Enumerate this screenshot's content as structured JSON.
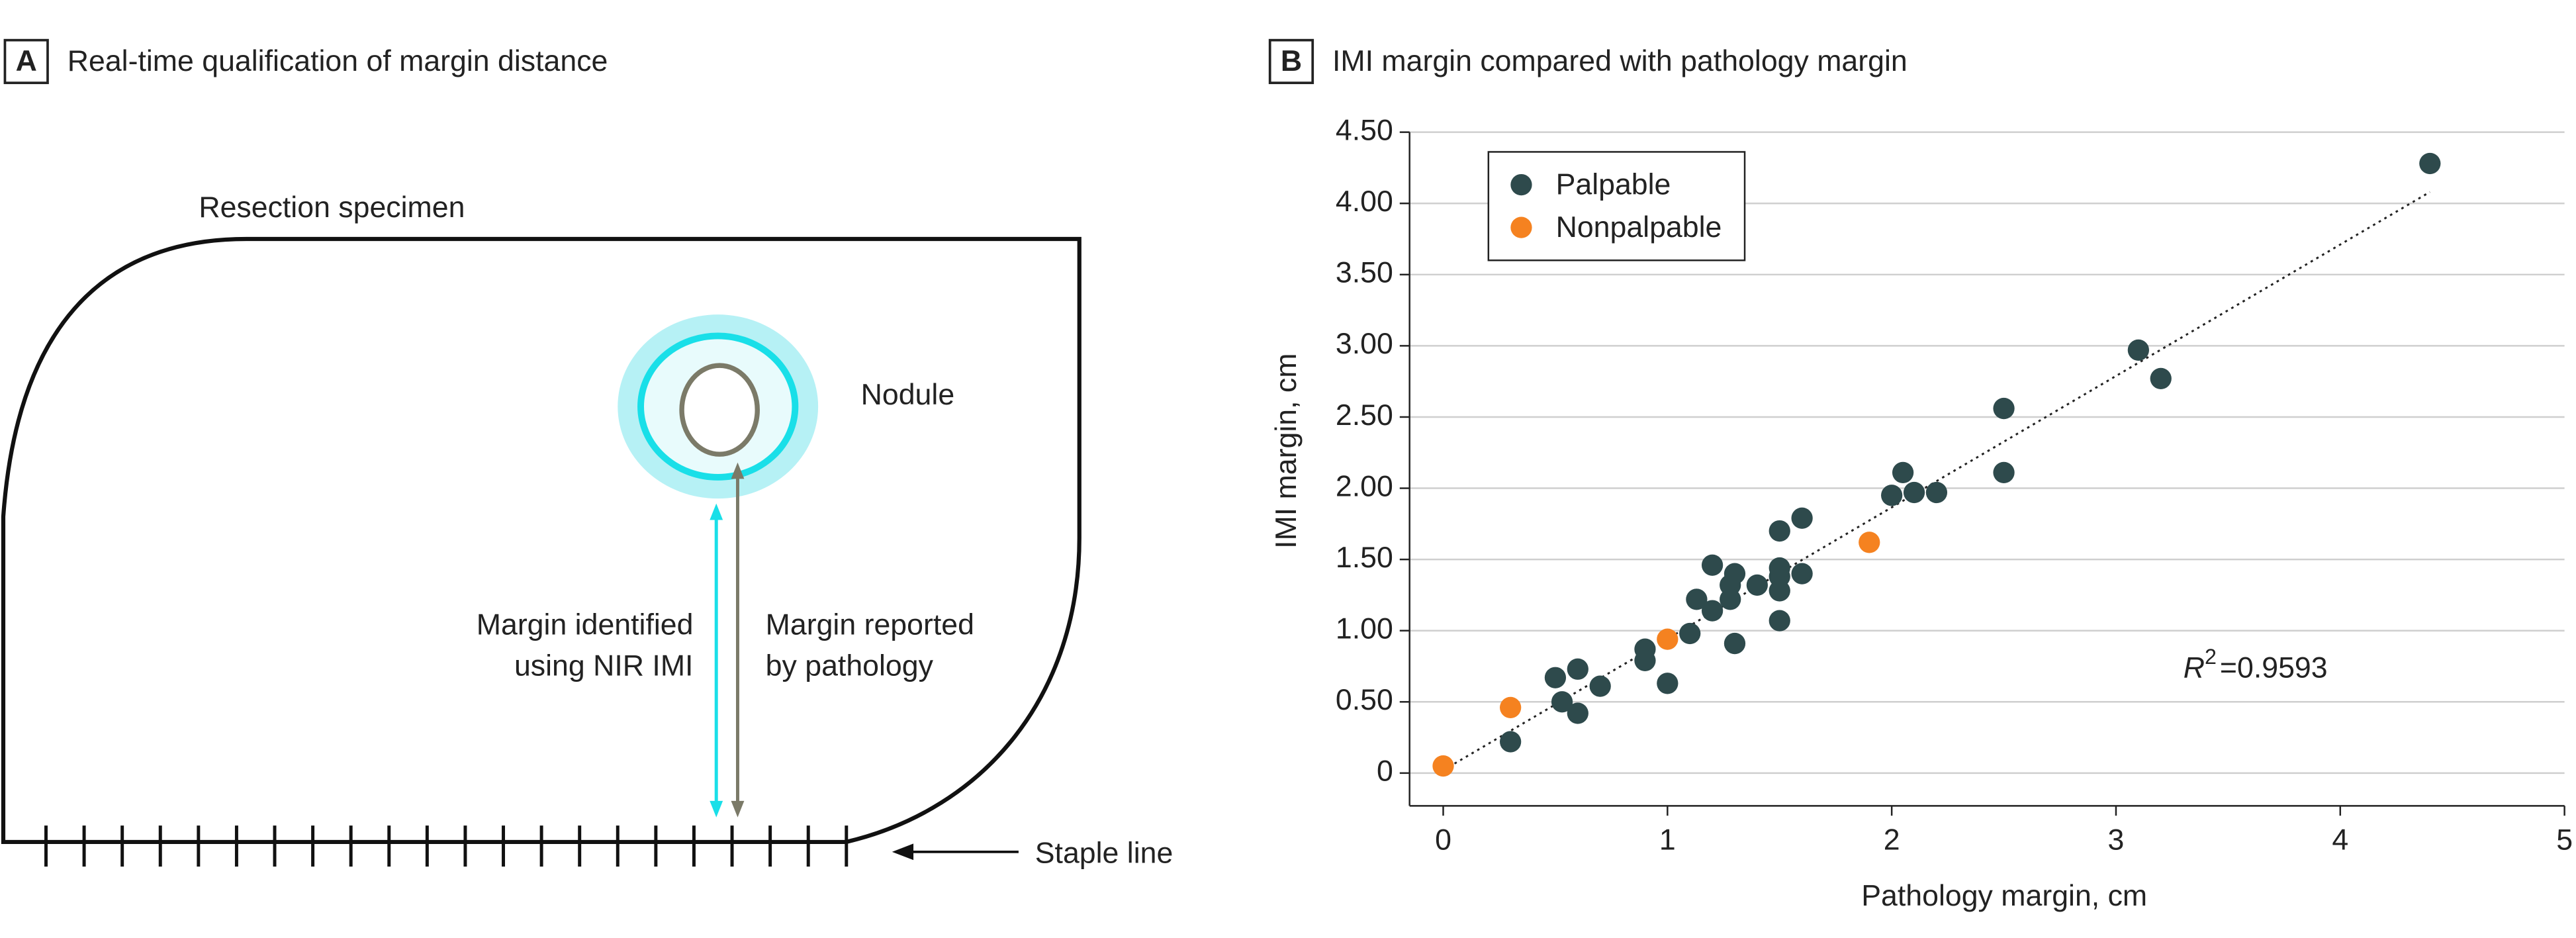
{
  "panel_a": {
    "letter": "A",
    "title": "Real-time qualification of margin distance",
    "specimen_label": "Resection specimen",
    "nodule_label": "Nodule",
    "imi_label": [
      "Margin identified",
      "using NIR IMI"
    ],
    "pathology_label": [
      "Margin reported",
      "by pathology"
    ],
    "staple_label": "Staple line"
  },
  "chart_data": {
    "type": "scatter",
    "letter": "B",
    "title": "IMI margin compared with pathology margin",
    "x_label": "Pathology margin, cm",
    "y_label": "IMI margin, cm",
    "xlim": [
      -0.15,
      5
    ],
    "xticks": [
      0,
      1,
      2,
      3,
      4,
      5
    ],
    "ylim": [
      -0.23,
      4.5
    ],
    "yticks": [
      0,
      {
        "value": 0.5,
        "label": "0.50"
      },
      {
        "value": 1,
        "label": "1.00"
      },
      {
        "value": 1.5,
        "label": "1.50"
      },
      {
        "value": 2,
        "label": "2.00"
      },
      {
        "value": 2.5,
        "label": "2.50"
      },
      {
        "value": 3,
        "label": "3.00"
      },
      {
        "value": 3.5,
        "label": "3.50"
      },
      {
        "value": 4,
        "label": "4.00"
      },
      {
        "value": 4.5,
        "label": "4.50"
      }
    ],
    "grid": true,
    "legend": "upper left",
    "series": [
      {
        "name": "Palpable",
        "color": "#2e4a4c",
        "x": [
          4.4,
          3.1,
          3.2,
          2.5,
          2.5,
          2.05,
          2.0,
          2.1,
          2.2,
          1.6,
          1.5,
          1.6,
          1.5,
          1.5,
          1.5,
          1.5,
          1.4,
          1.3,
          1.28,
          1.28,
          1.2,
          1.2,
          1.13,
          1.1,
          1.3,
          1.0,
          0.9,
          0.9,
          0.7,
          0.6,
          0.5,
          0.53,
          0.6,
          0.3
        ],
        "y": [
          4.28,
          2.97,
          2.77,
          2.56,
          2.11,
          2.11,
          1.95,
          1.97,
          1.97,
          1.79,
          1.7,
          1.4,
          1.44,
          1.38,
          1.28,
          1.07,
          1.32,
          1.4,
          1.32,
          1.22,
          1.46,
          1.14,
          1.22,
          0.98,
          0.91,
          0.63,
          0.87,
          0.79,
          0.61,
          0.73,
          0.67,
          0.5,
          0.42,
          0.22
        ]
      },
      {
        "name": "Nonpalpable",
        "color": "#f58220",
        "x": [
          0,
          0.3,
          1.0,
          1.9
        ],
        "y": [
          0.05,
          0.46,
          0.94,
          1.62
        ]
      }
    ],
    "trendline": {
      "x": [
        0,
        4.4
      ],
      "y": [
        0.02,
        4.08
      ]
    },
    "annotation": {
      "symbol": "R",
      "exponent": "2",
      "text": "=0.9593"
    }
  }
}
